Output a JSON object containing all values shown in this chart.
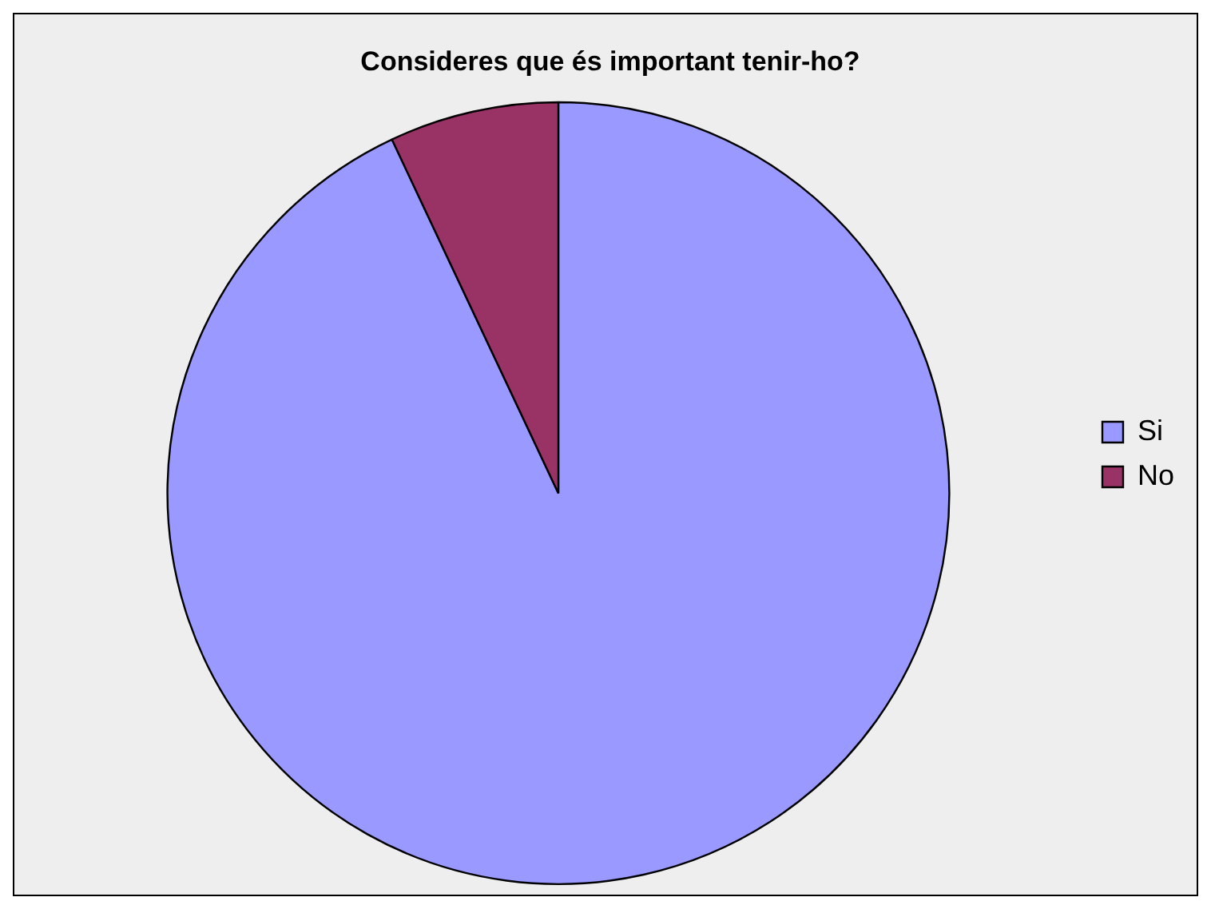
{
  "chart_data": {
    "type": "pie",
    "title": "Consideres que és important tenir-ho?",
    "categories": [
      "Si",
      "No"
    ],
    "values": [
      93,
      7
    ],
    "colors": [
      "#9999ff",
      "#993366"
    ],
    "legend": "right"
  }
}
